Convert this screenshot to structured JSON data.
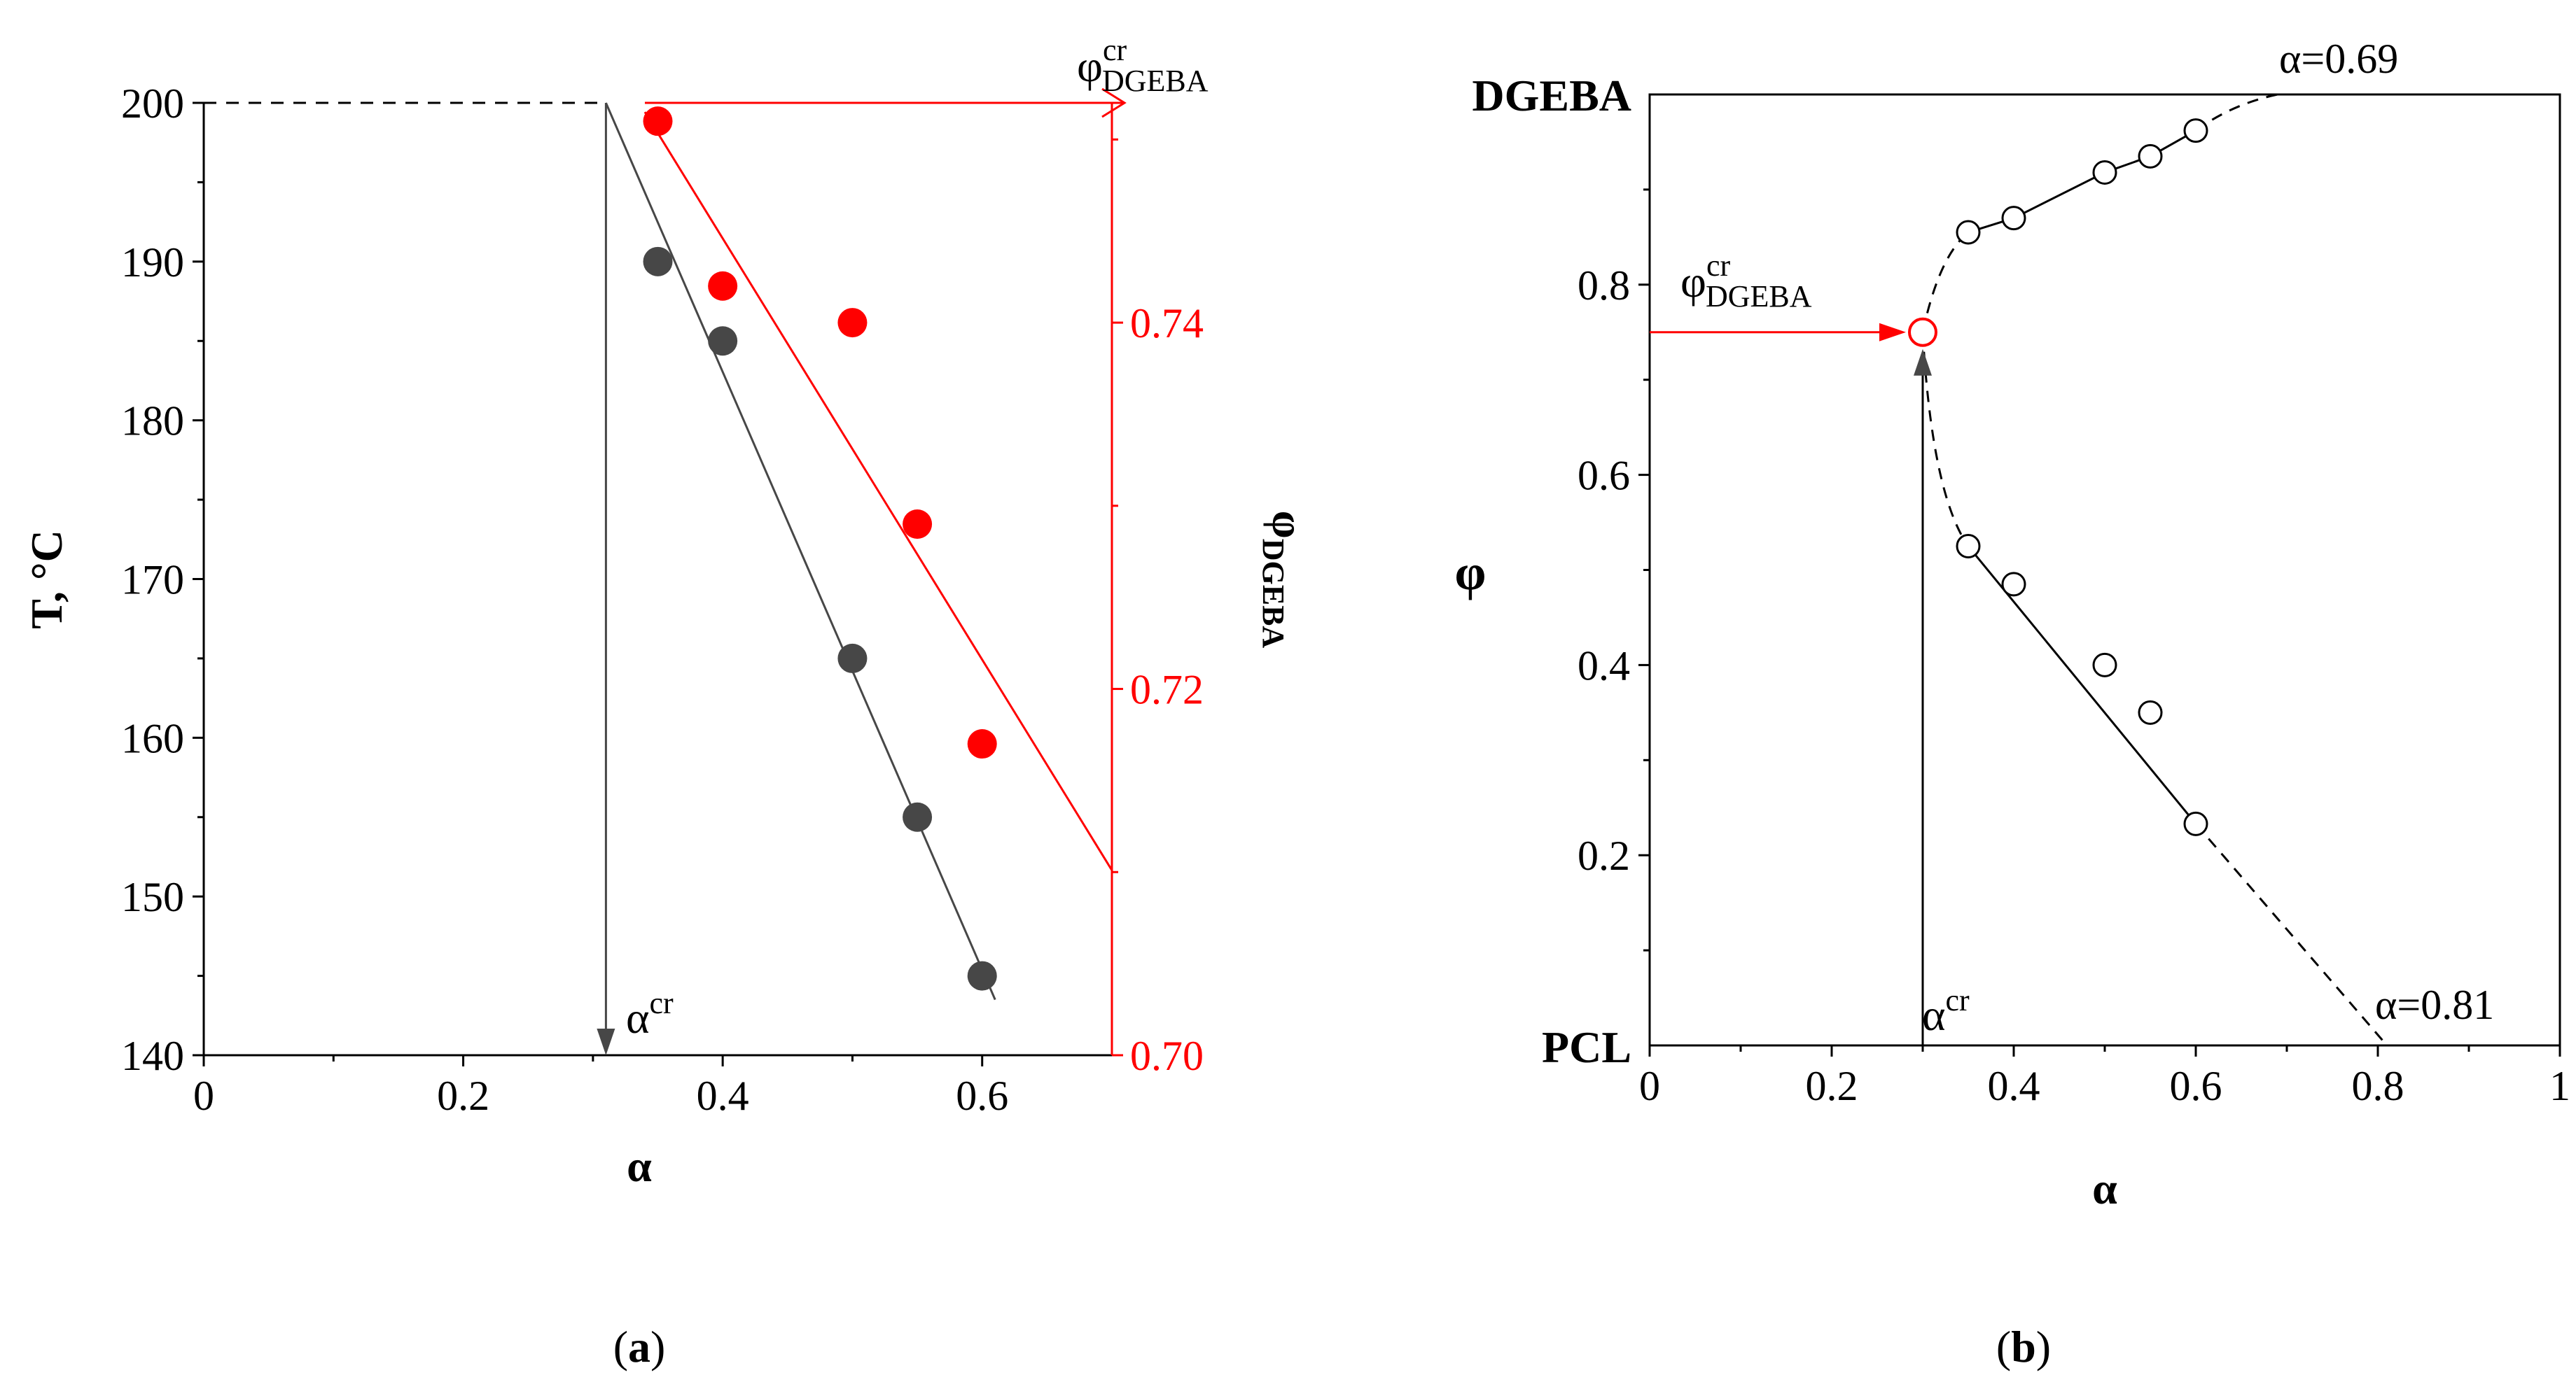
{
  "colors": {
    "black": "#000000",
    "gray": "#474747",
    "red": "#ff0000"
  },
  "chart_data": [
    {
      "panel_label_open": "(",
      "panel_label_letter": "a",
      "panel_label_close": ")",
      "type": "scatter",
      "xlabel": "α",
      "ylabel": "T, °C",
      "y2label_main": "φ",
      "y2label_sub": "DGEBA",
      "xlim": [
        0,
        0.7
      ],
      "ylim": [
        140,
        200
      ],
      "y2lim": [
        0.7,
        0.752
      ],
      "xticks": [
        0,
        0.2,
        0.4,
        0.6
      ],
      "xtick_labels": [
        "0",
        "0.2",
        "0.4",
        "0.6"
      ],
      "yticks": [
        140,
        150,
        160,
        170,
        180,
        190,
        200
      ],
      "ytick_labels": [
        "140",
        "150",
        "160",
        "170",
        "180",
        "190",
        "200"
      ],
      "y2ticks": [
        0.7,
        0.72,
        0.74
      ],
      "y2tick_labels": [
        "0.70",
        "0.72",
        "0.74"
      ],
      "series": [
        {
          "name": "T",
          "axis": "left",
          "color": "#474747",
          "x": [
            0.35,
            0.4,
            0.5,
            0.55,
            0.6
          ],
          "y": [
            190,
            185,
            165,
            155,
            145
          ],
          "fit": [
            [
              0.31,
              200
            ],
            [
              0.61,
              143.5
            ]
          ]
        },
        {
          "name": "φ_DGEBA",
          "axis": "right",
          "color": "#ff0000",
          "x": [
            0.35,
            0.4,
            0.5,
            0.55,
            0.6
          ],
          "y": [
            0.751,
            0.742,
            0.74,
            0.729,
            0.717
          ],
          "fit": [
            [
              0.34,
              0.7515
            ],
            [
              0.7,
              0.7101
            ]
          ]
        }
      ],
      "annotations": {
        "alpha_cr": {
          "main": "α",
          "sup": "cr",
          "x": 0.31
        },
        "phi_cr": {
          "main": "φ",
          "sup": "cr",
          "sub": "DGEBA"
        }
      }
    },
    {
      "panel_label_open": "(",
      "panel_label_letter": "b",
      "panel_label_close": ")",
      "type": "scatter",
      "xlabel": "α",
      "ylabel": "φ",
      "xlim": [
        0,
        1
      ],
      "ylim": [
        0,
        1
      ],
      "xticks": [
        0,
        0.2,
        0.4,
        0.6,
        0.8,
        1
      ],
      "xtick_labels": [
        "0",
        "0.2",
        "0.4",
        "0.6",
        "0.8",
        "1"
      ],
      "yticks": [
        0.2,
        0.4,
        0.6,
        0.8
      ],
      "ytick_labels": [
        "0.2",
        "0.4",
        "0.6",
        "0.8"
      ],
      "ytop_label": "DGEBA",
      "ybottom_label": "PCL",
      "series": [
        {
          "name": "upper branch",
          "color": "#000000",
          "marker": "open-circle",
          "x": [
            0.35,
            0.4,
            0.5,
            0.55,
            0.6
          ],
          "y": [
            0.855,
            0.87,
            0.918,
            0.935,
            0.962
          ]
        },
        {
          "name": "lower branch",
          "color": "#000000",
          "marker": "open-circle",
          "x": [
            0.35,
            0.4,
            0.5,
            0.55,
            0.6
          ],
          "y": [
            0.525,
            0.485,
            0.4,
            0.35,
            0.233
          ]
        },
        {
          "name": "critical point",
          "color": "#ff0000",
          "marker": "open-circle",
          "x": [
            0.3
          ],
          "y": [
            0.75
          ]
        }
      ],
      "annotations": {
        "alpha_069": "α=0.69",
        "alpha_081": "α=0.81",
        "alpha_cr": {
          "main": "α",
          "sup": "cr",
          "x": 0.3
        },
        "phi_cr": {
          "main": "φ",
          "sup": "cr",
          "sub": "DGEBA",
          "y": 0.75
        }
      }
    }
  ]
}
